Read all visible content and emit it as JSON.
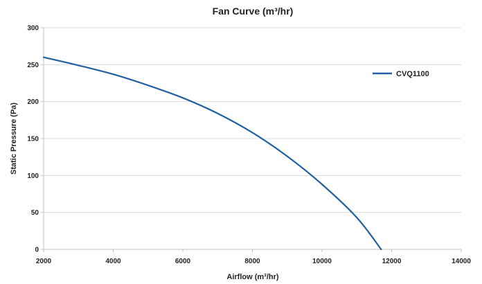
{
  "chart_data": {
    "type": "line",
    "title": "Fan Curve (m³/hr)",
    "xlabel": "Airflow (m³/hr)",
    "ylabel": "Static Pressure (Pa)",
    "xlim": [
      2000,
      14000
    ],
    "ylim": [
      0,
      300
    ],
    "xticks": [
      2000,
      4000,
      6000,
      8000,
      10000,
      12000,
      14000
    ],
    "yticks": [
      0,
      50,
      100,
      150,
      200,
      250,
      300
    ],
    "grid": "horizontal",
    "legend_position": "right",
    "series": [
      {
        "name": "CVQ1100",
        "color": "#2060a0",
        "x": [
          2000,
          3000,
          4000,
          5000,
          6000,
          7000,
          8000,
          9000,
          10000,
          11000,
          11700
        ],
        "y": [
          260,
          249,
          237,
          222,
          205,
          184,
          158,
          126,
          88,
          43,
          0
        ]
      }
    ]
  }
}
